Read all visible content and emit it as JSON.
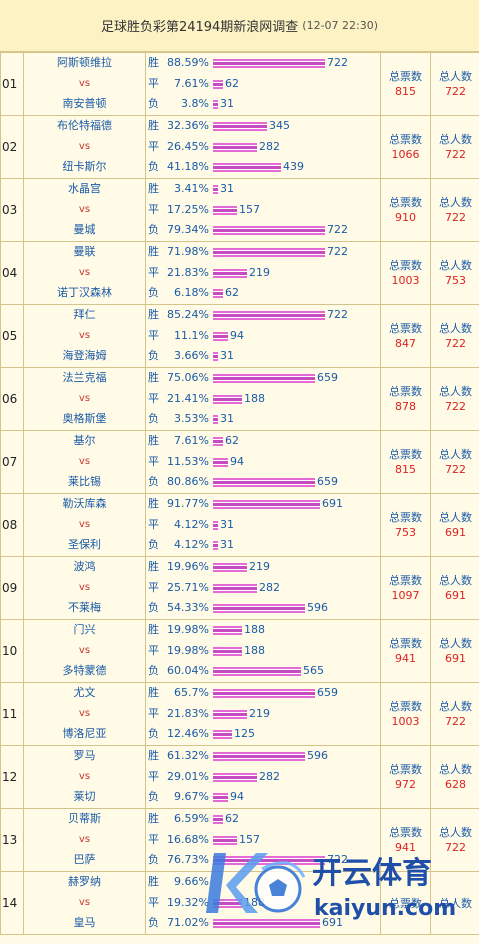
{
  "header": {
    "title": "足球胜负彩第24194期新浪网调查",
    "time": "(12-07 22:30)"
  },
  "labels": {
    "win": "胜",
    "draw": "平",
    "loss": "负",
    "vs": "vs",
    "total_votes": "总票数",
    "total_people": "总人数"
  },
  "matches": [
    {
      "no": "01",
      "home": "阿斯顿维拉",
      "away": "南安普顿",
      "win_pct": "88.59%",
      "win": 722,
      "draw_pct": "7.61%",
      "draw": 62,
      "loss_pct": "3.8%",
      "loss": 31,
      "votes": "815",
      "people": "722"
    },
    {
      "no": "02",
      "home": "布伦特福德",
      "away": "纽卡斯尔",
      "win_pct": "32.36%",
      "win": 345,
      "draw_pct": "26.45%",
      "draw": 282,
      "loss_pct": "41.18%",
      "loss": 439,
      "votes": "1066",
      "people": "722"
    },
    {
      "no": "03",
      "home": "水晶宫",
      "away": "曼城",
      "win_pct": "3.41%",
      "win": 31,
      "draw_pct": "17.25%",
      "draw": 157,
      "loss_pct": "79.34%",
      "loss": 722,
      "votes": "910",
      "people": "722"
    },
    {
      "no": "04",
      "home": "曼联",
      "away": "诺丁汉森林",
      "win_pct": "71.98%",
      "win": 722,
      "draw_pct": "21.83%",
      "draw": 219,
      "loss_pct": "6.18%",
      "loss": 62,
      "votes": "1003",
      "people": "753"
    },
    {
      "no": "05",
      "home": "拜仁",
      "away": "海登海姆",
      "win_pct": "85.24%",
      "win": 722,
      "draw_pct": "11.1%",
      "draw": 94,
      "loss_pct": "3.66%",
      "loss": 31,
      "votes": "847",
      "people": "722"
    },
    {
      "no": "06",
      "home": "法兰克福",
      "away": "奥格斯堡",
      "win_pct": "75.06%",
      "win": 659,
      "draw_pct": "21.41%",
      "draw": 188,
      "loss_pct": "3.53%",
      "loss": 31,
      "votes": "878",
      "people": "722"
    },
    {
      "no": "07",
      "home": "基尔",
      "away": "莱比锡",
      "win_pct": "7.61%",
      "win": 62,
      "draw_pct": "11.53%",
      "draw": 94,
      "loss_pct": "80.86%",
      "loss": 659,
      "votes": "815",
      "people": "722"
    },
    {
      "no": "08",
      "home": "勒沃库森",
      "away": "圣保利",
      "win_pct": "91.77%",
      "win": 691,
      "draw_pct": "4.12%",
      "draw": 31,
      "loss_pct": "4.12%",
      "loss": 31,
      "votes": "753",
      "people": "691"
    },
    {
      "no": "09",
      "home": "波鸿",
      "away": "不莱梅",
      "win_pct": "19.96%",
      "win": 219,
      "draw_pct": "25.71%",
      "draw": 282,
      "loss_pct": "54.33%",
      "loss": 596,
      "votes": "1097",
      "people": "691"
    },
    {
      "no": "10",
      "home": "门兴",
      "away": "多特蒙德",
      "win_pct": "19.98%",
      "win": 188,
      "draw_pct": "19.98%",
      "draw": 188,
      "loss_pct": "60.04%",
      "loss": 565,
      "votes": "941",
      "people": "691"
    },
    {
      "no": "11",
      "home": "尤文",
      "away": "博洛尼亚",
      "win_pct": "65.7%",
      "win": 659,
      "draw_pct": "21.83%",
      "draw": 219,
      "loss_pct": "12.46%",
      "loss": 125,
      "votes": "1003",
      "people": "722"
    },
    {
      "no": "12",
      "home": "罗马",
      "away": "莱切",
      "win_pct": "61.32%",
      "win": 596,
      "draw_pct": "29.01%",
      "draw": 282,
      "loss_pct": "9.67%",
      "loss": 94,
      "votes": "972",
      "people": "628"
    },
    {
      "no": "13",
      "home": "贝蒂斯",
      "away": "巴萨",
      "win_pct": "6.59%",
      "win": 62,
      "draw_pct": "16.68%",
      "draw": 157,
      "loss_pct": "76.73%",
      "loss": 722,
      "votes": "941",
      "people": "722"
    },
    {
      "no": "14",
      "home": "赫罗纳",
      "away": "皇马",
      "win_pct": "9.66%",
      "win": null,
      "draw_pct": "19.32%",
      "draw": 188,
      "loss_pct": "71.02%",
      "loss": 691,
      "votes": "",
      "people": ""
    }
  ],
  "watermark": {
    "brand": "开云体育",
    "domain": "kaiyun.com"
  }
}
